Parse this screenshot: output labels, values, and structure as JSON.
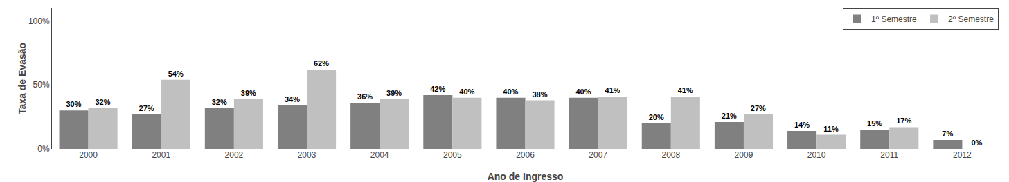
{
  "chart_data": {
    "type": "bar",
    "xlabel": "Ano de Ingresso",
    "ylabel": "Taxa de Evasão",
    "categories": [
      "2000",
      "2001",
      "2002",
      "2003",
      "2004",
      "2005",
      "2006",
      "2007",
      "2008",
      "2009",
      "2010",
      "2011",
      "2012"
    ],
    "series": [
      {
        "name": "1º Semestre",
        "color": "#808080",
        "values": [
          0.3,
          0.27,
          0.32,
          0.34,
          0.36,
          0.42,
          0.4,
          0.4,
          0.2,
          0.21,
          0.14,
          0.15,
          0.07
        ],
        "value_labels": [
          "30%",
          "27%",
          "32%",
          "34%",
          "36%",
          "42%",
          "40%",
          "40%",
          "20%",
          "21%",
          "14%",
          "15%",
          "7%"
        ]
      },
      {
        "name": "2º Semestre",
        "color": "#C0C0C0",
        "values": [
          0.32,
          0.54,
          0.39,
          0.62,
          0.39,
          0.4,
          0.38,
          0.41,
          0.41,
          0.27,
          0.11,
          0.17,
          0.0
        ],
        "value_labels": [
          "32%",
          "54%",
          "39%",
          "62%",
          "39%",
          "40%",
          "38%",
          "41%",
          "41%",
          "27%",
          "11%",
          "17%",
          "0%"
        ]
      }
    ],
    "ylim": [
      0,
      1.1
    ],
    "yticks": [
      {
        "value": 0.0,
        "label": "0%"
      },
      {
        "value": 0.5,
        "label": "50%"
      },
      {
        "value": 1.0,
        "label": "100%"
      }
    ],
    "grid": true,
    "legend": "upper right",
    "data_labels": true
  }
}
